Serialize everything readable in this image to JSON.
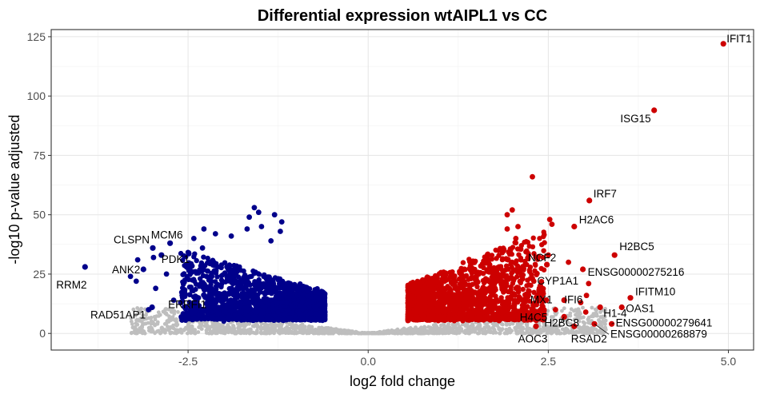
{
  "chart_data": {
    "type": "scatter",
    "title": "Differential expression wtAIPL1 vs CC",
    "xlabel": "log2 fold change",
    "ylabel": "-log10 p-value adjusted",
    "xlim": [
      -4.4,
      5.35
    ],
    "ylim": [
      -7,
      128
    ],
    "x_ticks": [
      -2.5,
      0.0,
      2.5,
      5.0
    ],
    "x_tick_labels": [
      "-2.5",
      "0.0",
      "2.5",
      "5.0"
    ],
    "y_ticks": [
      0,
      25,
      50,
      75,
      100,
      125
    ],
    "y_tick_labels": [
      "0",
      "25",
      "50",
      "75",
      "100",
      "125"
    ],
    "grid": true,
    "colors": {
      "down": "#00008b",
      "up": "#cd0000",
      "not_significant": "#bebebe",
      "background": "#ffffff",
      "border": "#333333"
    },
    "labeled_genes": [
      {
        "gene": "IFIT1",
        "x": 4.93,
        "y": 122,
        "group": "up"
      },
      {
        "gene": "ISG15",
        "x": 3.97,
        "y": 94,
        "group": "up"
      },
      {
        "gene": "IRF7",
        "x": 3.07,
        "y": 56,
        "group": "up"
      },
      {
        "gene": "H2AC6",
        "x": 2.86,
        "y": 45,
        "group": "up"
      },
      {
        "gene": "H2BC5",
        "x": 3.42,
        "y": 33,
        "group": "up"
      },
      {
        "gene": "NCF2",
        "x": 2.48,
        "y": 29,
        "group": "up"
      },
      {
        "gene": "ENSG00000275216",
        "x": 2.98,
        "y": 27,
        "group": "up"
      },
      {
        "gene": "CYP1A1",
        "x": 2.39,
        "y": 20,
        "group": "up"
      },
      {
        "gene": "IFITM10",
        "x": 3.64,
        "y": 15,
        "group": "up"
      },
      {
        "gene": "MX1",
        "x": 2.47,
        "y": 14,
        "group": "up"
      },
      {
        "gene": "IFI6",
        "x": 2.72,
        "y": 14,
        "group": "up"
      },
      {
        "gene": "OAS1",
        "x": 3.52,
        "y": 11,
        "group": "up"
      },
      {
        "gene": "H1-4",
        "x": 3.22,
        "y": 11,
        "group": "up"
      },
      {
        "gene": "H4C5",
        "x": 2.33,
        "y": 9,
        "group": "up"
      },
      {
        "gene": "H2BC8",
        "x": 2.72,
        "y": 7,
        "group": "up"
      },
      {
        "gene": "ENSG00000279641",
        "x": 3.38,
        "y": 4,
        "group": "up"
      },
      {
        "gene": "AOC3",
        "x": 2.33,
        "y": 3,
        "group": "up"
      },
      {
        "gene": "RSAD2",
        "x": 2.86,
        "y": 3,
        "group": "up"
      },
      {
        "gene": "ENSG00000268879",
        "x": 3.14,
        "y": 4,
        "group": "up"
      },
      {
        "gene": "RRM2",
        "x": -3.93,
        "y": 28,
        "group": "down"
      },
      {
        "gene": "CLSPN",
        "x": -2.99,
        "y": 36,
        "group": "down"
      },
      {
        "gene": "MCM6",
        "x": -2.75,
        "y": 38,
        "group": "down"
      },
      {
        "gene": "PDK1",
        "x": -2.87,
        "y": 33,
        "group": "down"
      },
      {
        "gene": "ANK2",
        "x": -3.12,
        "y": 27,
        "group": "down"
      },
      {
        "gene": "ERRFI1",
        "x": -2.6,
        "y": 13,
        "group": "down"
      },
      {
        "gene": "RAD51AP1",
        "x": -3.0,
        "y": 11,
        "group": "down"
      }
    ],
    "extra_points": [
      {
        "x": 2.28,
        "y": 66,
        "group": "up"
      },
      {
        "x": 2.0,
        "y": 52,
        "group": "up"
      },
      {
        "x": 1.93,
        "y": 50,
        "group": "up"
      },
      {
        "x": 2.52,
        "y": 48,
        "group": "up"
      },
      {
        "x": 2.55,
        "y": 46,
        "group": "up"
      },
      {
        "x": 2.08,
        "y": 45,
        "group": "up"
      },
      {
        "x": 1.93,
        "y": 44,
        "group": "up"
      },
      {
        "x": 2.05,
        "y": 40,
        "group": "up"
      },
      {
        "x": 2.78,
        "y": 30,
        "group": "up"
      },
      {
        "x": 2.5,
        "y": 33,
        "group": "up"
      },
      {
        "x": 2.3,
        "y": 22,
        "group": "up"
      },
      {
        "x": 3.06,
        "y": 21,
        "group": "up"
      },
      {
        "x": 3.03,
        "y": 16,
        "group": "up"
      },
      {
        "x": 2.95,
        "y": 13,
        "group": "up"
      },
      {
        "x": 2.6,
        "y": 10,
        "group": "up"
      },
      {
        "x": 3.02,
        "y": 9,
        "group": "up"
      },
      {
        "x": -1.58,
        "y": 53,
        "group": "down"
      },
      {
        "x": -1.52,
        "y": 51,
        "group": "down"
      },
      {
        "x": -1.65,
        "y": 49,
        "group": "down"
      },
      {
        "x": -1.3,
        "y": 50,
        "group": "down"
      },
      {
        "x": -1.2,
        "y": 47,
        "group": "down"
      },
      {
        "x": -1.22,
        "y": 43,
        "group": "down"
      },
      {
        "x": -1.48,
        "y": 45,
        "group": "down"
      },
      {
        "x": -1.68,
        "y": 44,
        "group": "down"
      },
      {
        "x": -2.28,
        "y": 44,
        "group": "down"
      },
      {
        "x": -2.12,
        "y": 42,
        "group": "down"
      },
      {
        "x": -1.9,
        "y": 41,
        "group": "down"
      },
      {
        "x": -2.42,
        "y": 40,
        "group": "down"
      },
      {
        "x": -2.3,
        "y": 36,
        "group": "down"
      },
      {
        "x": -1.35,
        "y": 39,
        "group": "down"
      },
      {
        "x": -2.98,
        "y": 32,
        "group": "down"
      },
      {
        "x": -3.2,
        "y": 31,
        "group": "down"
      },
      {
        "x": -3.3,
        "y": 24,
        "group": "down"
      },
      {
        "x": -3.22,
        "y": 22,
        "group": "down"
      },
      {
        "x": -2.8,
        "y": 25,
        "group": "down"
      },
      {
        "x": -2.95,
        "y": 19,
        "group": "down"
      },
      {
        "x": -3.05,
        "y": 10,
        "group": "down"
      },
      {
        "x": -2.7,
        "y": 14,
        "group": "down"
      }
    ]
  }
}
